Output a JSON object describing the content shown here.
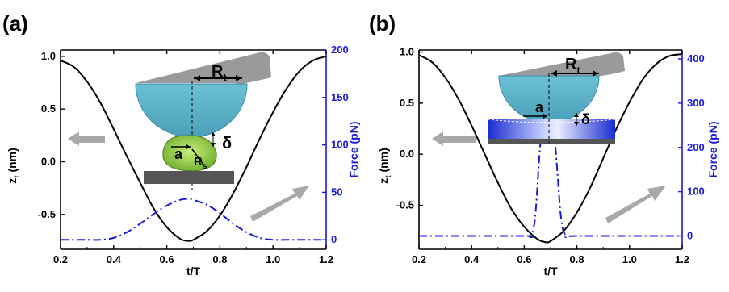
{
  "colors": {
    "curve_z": "#000000",
    "curve_force": "#1a1adb",
    "axis_right": "#1a1adb",
    "arrow": "#a8a8a8",
    "tip": "#5bb0c9",
    "sphere": "#8fce3a",
    "substrate": "#555555",
    "film": "#2233cc"
  },
  "icons": [
    "arrow-left-icon",
    "arrow-up-right-icon",
    "afm-tip-icon",
    "sphere-sample-icon",
    "film-sample-icon"
  ],
  "chart_data": [
    {
      "panel": "(a)",
      "type": "line",
      "xlabel": "t/T",
      "ylabel_left": "zt (nm)",
      "ylabel_left_main": "z",
      "ylabel_left_sub": "t",
      "ylabel_left_unit": " (nm)",
      "ylabel_right": "Force (pN)",
      "xlim": [
        0.2,
        1.2
      ],
      "ylim_left": [
        -0.83,
        1.06
      ],
      "ylim_right": [
        -10,
        200
      ],
      "xticks": [
        "0.2",
        "0.4",
        "0.6",
        "0.8",
        "1.0",
        "1.2"
      ],
      "yticks_left": [
        "-0.5",
        "0.0",
        "0.5",
        "1.0"
      ],
      "yticks_right": [
        "0",
        "50",
        "100",
        "150",
        "200"
      ],
      "series": [
        {
          "axis": "left",
          "style": "solid",
          "x": [
            0.2,
            0.25,
            0.3,
            0.35,
            0.4,
            0.45,
            0.5,
            0.55,
            0.6,
            0.65,
            0.68,
            0.7,
            0.75,
            0.8,
            0.85,
            0.9,
            0.95,
            1.0,
            1.05,
            1.1,
            1.15,
            1.2
          ],
          "y": [
            0.96,
            0.9,
            0.76,
            0.56,
            0.31,
            0.05,
            -0.2,
            -0.44,
            -0.62,
            -0.73,
            -0.75,
            -0.74,
            -0.66,
            -0.51,
            -0.3,
            -0.05,
            0.22,
            0.47,
            0.69,
            0.86,
            0.96,
            1.0
          ]
        },
        {
          "axis": "right",
          "style": "dash-dot",
          "x": [
            0.2,
            0.3,
            0.35,
            0.4,
            0.45,
            0.5,
            0.55,
            0.6,
            0.65,
            0.68,
            0.7,
            0.75,
            0.8,
            0.85,
            0.9,
            0.95,
            1.0,
            1.05,
            1.1,
            1.2
          ],
          "y": [
            0,
            0,
            0,
            2,
            8,
            17,
            27,
            36,
            42,
            43,
            42,
            37,
            28,
            17,
            8,
            2,
            0,
            0,
            0,
            0
          ]
        }
      ]
    },
    {
      "panel": "(b)",
      "type": "line",
      "xlabel": "t/T",
      "ylabel_left": "zt (nm)",
      "ylabel_left_main": "z",
      "ylabel_left_sub": "t",
      "ylabel_left_unit": " (nm)",
      "ylabel_right": "Force (pN)",
      "xlim": [
        0.2,
        1.2
      ],
      "ylim_left": [
        -0.93,
        1.02
      ],
      "ylim_right": [
        -30,
        420
      ],
      "xticks": [
        "0.2",
        "0.4",
        "0.6",
        "0.8",
        "1.0",
        "1.2"
      ],
      "yticks_left": [
        "-0.5",
        "0.0",
        "0.5",
        "1.0"
      ],
      "yticks_right": [
        "0",
        "100",
        "200",
        "300",
        "400"
      ],
      "series": [
        {
          "axis": "left",
          "style": "solid",
          "x": [
            0.2,
            0.25,
            0.3,
            0.35,
            0.4,
            0.45,
            0.5,
            0.55,
            0.6,
            0.65,
            0.68,
            0.7,
            0.75,
            0.8,
            0.85,
            0.9,
            0.95,
            1.0,
            1.05,
            1.1,
            1.15,
            1.2
          ],
          "y": [
            0.97,
            0.9,
            0.75,
            0.54,
            0.28,
            0.0,
            -0.28,
            -0.53,
            -0.71,
            -0.83,
            -0.86,
            -0.85,
            -0.75,
            -0.57,
            -0.33,
            -0.04,
            0.25,
            0.51,
            0.73,
            0.88,
            0.96,
            0.98
          ]
        },
        {
          "axis": "right",
          "style": "dash-dot",
          "x": [
            0.2,
            0.6,
            0.62,
            0.64,
            0.66,
            0.68,
            0.69,
            0.7,
            0.72,
            0.74,
            0.76,
            0.8,
            1.2
          ],
          "y": [
            0,
            0,
            0,
            35,
            200,
            330,
            340,
            320,
            190,
            40,
            0,
            0,
            0
          ]
        }
      ]
    }
  ],
  "annotations": {
    "a": {
      "Rt_main": "R",
      "Rt_sub": "t",
      "a": "a",
      "Rs_main": "R",
      "Rs_sub": "s",
      "delta": "δ"
    },
    "b": {
      "Rt_main": "R",
      "Rt_sub": "t",
      "a": "a",
      "delta": "δ"
    }
  }
}
